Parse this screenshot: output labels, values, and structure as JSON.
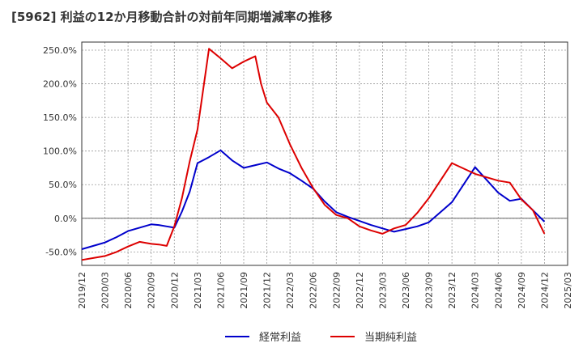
{
  "chart_data": {
    "type": "line",
    "title": "[5962]  利益の12か月移動合計の対前年同期増減率の推移",
    "xlabel": "",
    "ylabel": "",
    "ylim": [
      -70,
      262
    ],
    "yticks": [
      -50,
      0,
      50,
      100,
      150,
      200,
      250
    ],
    "ytick_labels": [
      "-50.0%",
      "0.0%",
      "50.0%",
      "100.0%",
      "150.0%",
      "200.0%",
      "250.0%"
    ],
    "xtick_labels": [
      "2019/12",
      "2020/03",
      "2020/06",
      "2020/09",
      "2020/12",
      "2021/03",
      "2021/06",
      "2021/09",
      "2021/12",
      "2022/03",
      "2022/06",
      "2022/09",
      "2022/12",
      "2023/03",
      "2023/06",
      "2023/09",
      "2023/12",
      "2024/03",
      "2024/06",
      "2024/09",
      "2024/12",
      "2025/03"
    ],
    "grid": true,
    "legend_position": "bottom",
    "series": [
      {
        "name": "経常利益",
        "color": "#0000cc",
        "x": [
          0,
          1,
          1.5,
          2,
          2.5,
          3,
          3.33,
          3.67,
          4,
          4.33,
          4.67,
          5,
          5.5,
          6,
          6.5,
          7,
          7.5,
          8,
          8.5,
          9,
          9.5,
          10,
          10.5,
          11,
          11.5,
          12,
          12.5,
          13,
          13.5,
          14,
          14.5,
          15,
          16,
          17,
          18,
          18.5,
          19,
          19.5,
          20
        ],
        "values": [
          -46,
          -36,
          -28,
          -19,
          -14,
          -9,
          -10,
          -12,
          -14,
          10,
          40,
          82,
          91,
          101,
          86,
          75,
          79,
          83,
          74,
          67,
          56,
          44,
          25,
          9,
          2,
          -4,
          -10,
          -15,
          -20,
          -16,
          -12,
          -6,
          24,
          76,
          38,
          26,
          29,
          12,
          -5
        ]
      },
      {
        "name": "当期純利益",
        "color": "#dd0000",
        "x": [
          0,
          1,
          1.5,
          2,
          2.5,
          3,
          3.33,
          3.67,
          4,
          4.33,
          4.67,
          5,
          5.5,
          6,
          6.5,
          7,
          7.25,
          7.5,
          7.75,
          8,
          8.5,
          9,
          9.5,
          10,
          10.5,
          11,
          11.5,
          12,
          12.5,
          13,
          13.5,
          14,
          14.5,
          15,
          16,
          17,
          18,
          18.5,
          19,
          19.5,
          20
        ],
        "values": [
          -62,
          -56,
          -50,
          -42,
          -35,
          -38,
          -39,
          -41,
          -12,
          30,
          85,
          132,
          252,
          238,
          223,
          233,
          237,
          241,
          200,
          172,
          150,
          110,
          75,
          45,
          20,
          5,
          0,
          -12,
          -18,
          -23,
          -15,
          -10,
          8,
          30,
          82,
          66,
          56,
          53,
          28,
          12,
          -23
        ]
      }
    ]
  }
}
